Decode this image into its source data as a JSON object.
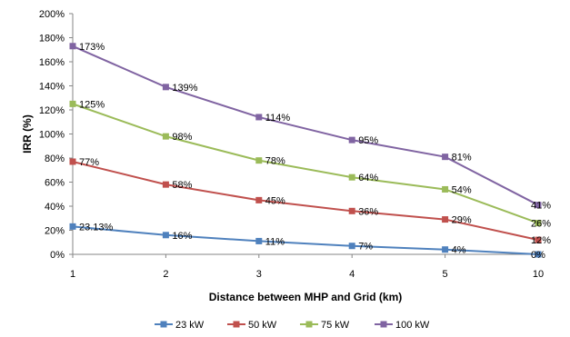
{
  "chart_data": {
    "type": "line",
    "title": "",
    "xlabel": "Distance between MHP and Grid (km)",
    "ylabel": "IRR (%)",
    "categories": [
      "1",
      "2",
      "3",
      "4",
      "5",
      "10"
    ],
    "ylim": [
      0,
      200
    ],
    "yticks": [
      0,
      20,
      40,
      60,
      80,
      100,
      120,
      140,
      160,
      180,
      200
    ],
    "ytick_labels": [
      "0%",
      "20%",
      "40%",
      "60%",
      "80%",
      "100%",
      "120%",
      "140%",
      "160%",
      "180%",
      "200%"
    ],
    "grid": false,
    "legend_position": "bottom",
    "series": [
      {
        "name": "23 kW",
        "color": "#4F81BD",
        "values": [
          23.13,
          16,
          11,
          7,
          4,
          0
        ],
        "labels": [
          "23.13%",
          "16%",
          "11%",
          "7%",
          "4%",
          "0%"
        ]
      },
      {
        "name": "50 kW",
        "color": "#C0504D",
        "values": [
          77,
          58,
          45,
          36,
          29,
          12
        ],
        "labels": [
          "77%",
          "58%",
          "45%",
          "36%",
          "29%",
          "12%"
        ]
      },
      {
        "name": "75 kW",
        "color": "#9BBB59",
        "values": [
          125,
          98,
          78,
          64,
          54,
          26
        ],
        "labels": [
          "125%",
          "98%",
          "78%",
          "64%",
          "54%",
          "26%"
        ]
      },
      {
        "name": "100 kW",
        "color": "#8064A2",
        "values": [
          173,
          139,
          114,
          95,
          81,
          41
        ],
        "labels": [
          "173%",
          "139%",
          "114%",
          "95%",
          "81%",
          "41%"
        ]
      }
    ]
  }
}
